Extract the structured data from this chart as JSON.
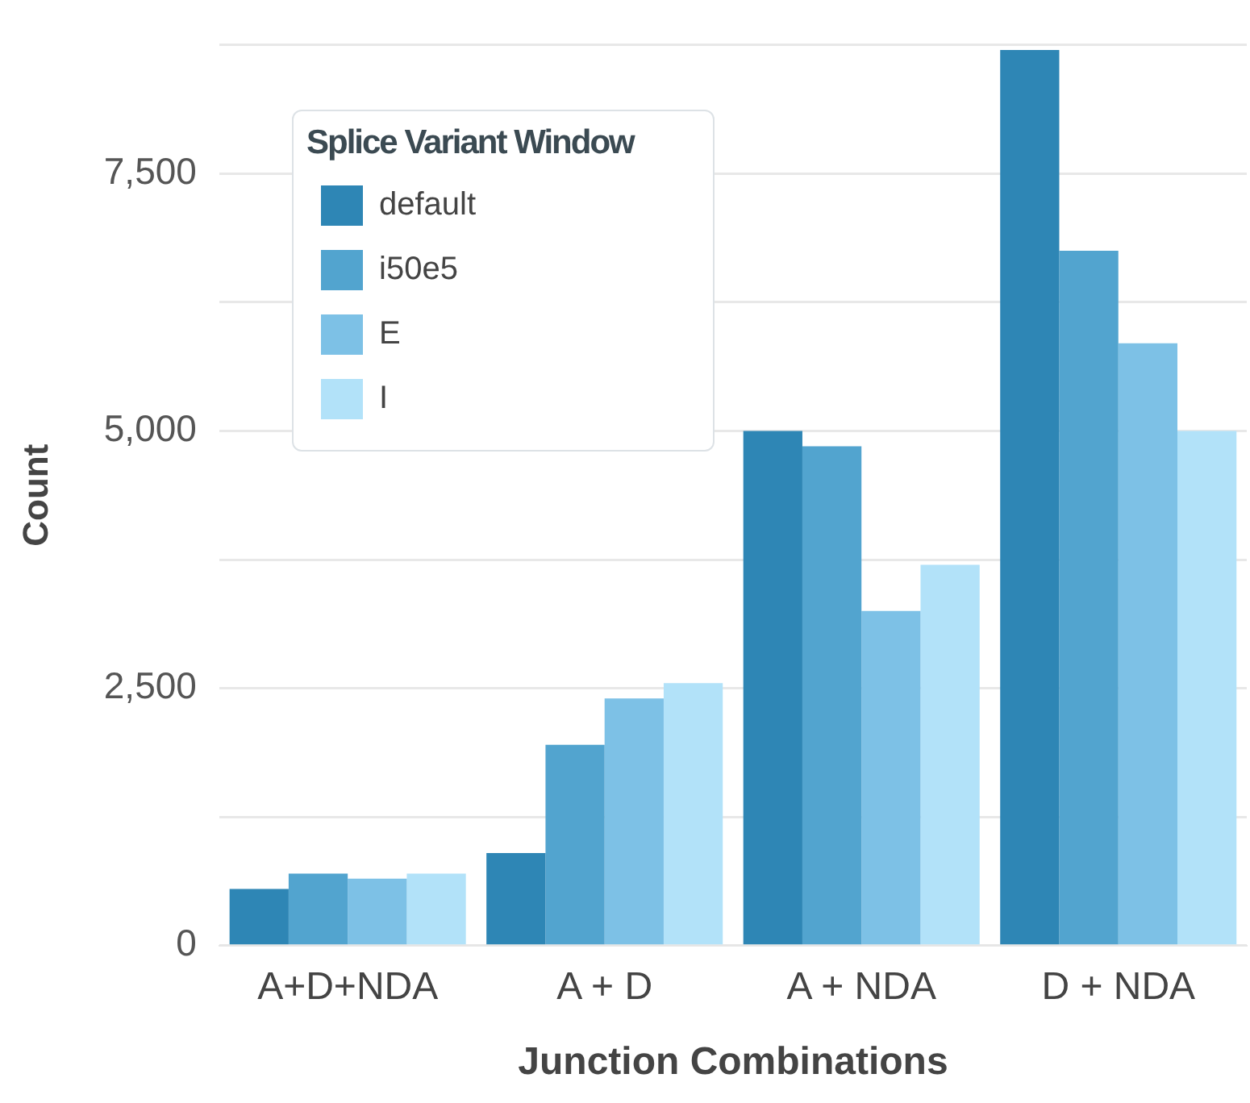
{
  "chart_data": {
    "type": "bar",
    "xlabel": "Junction Combinations",
    "ylabel": "Count",
    "legend_title": "Splice Variant Window",
    "categories": [
      "A+D+NDA",
      "A + D",
      "A + NDA",
      "D + NDA"
    ],
    "series": [
      {
        "name": "default",
        "color": "#2e86b5",
        "values": [
          550,
          900,
          5000,
          8700
        ]
      },
      {
        "name": "i50e5",
        "color": "#52a4cf",
        "values": [
          700,
          1950,
          4850,
          6750
        ]
      },
      {
        "name": "E",
        "color": "#7dc1e6",
        "values": [
          650,
          2400,
          3250,
          5850
        ]
      },
      {
        "name": "I",
        "color": "#b2e2f9",
        "values": [
          700,
          2550,
          3700,
          5000
        ]
      }
    ],
    "ylim": [
      0,
      8750
    ],
    "yticks": [
      0,
      {
        "value": 1250,
        "label": null
      },
      {
        "value": 2500,
        "label": "2,500"
      },
      {
        "value": 3750,
        "label": null
      },
      {
        "value": 5000,
        "label": "5,000"
      },
      {
        "value": 6250,
        "label": null
      },
      {
        "value": 7500,
        "label": "7,500"
      },
      {
        "value": 8750,
        "label": null
      }
    ],
    "grid": "y",
    "legend": "top left"
  }
}
